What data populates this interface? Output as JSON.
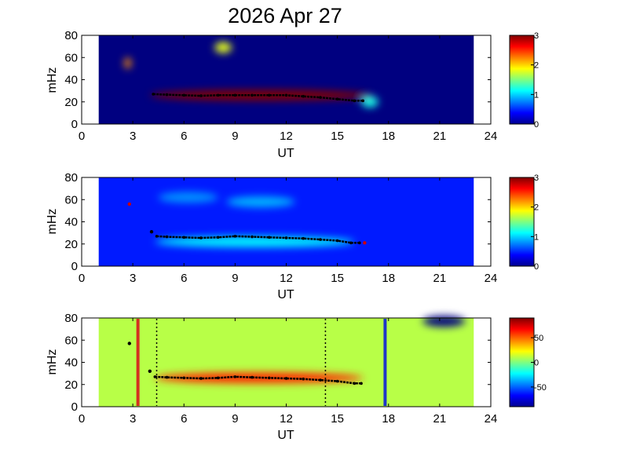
{
  "title": "2026 Apr 27",
  "chart_data": [
    {
      "type": "heatmap",
      "xlabel": "UT",
      "ylabel": "mHz",
      "xlim": [
        0,
        24
      ],
      "ylim": [
        0,
        80
      ],
      "xticks": [
        "0",
        "3",
        "6",
        "9",
        "12",
        "15",
        "18",
        "21",
        "24"
      ],
      "yticks": [
        "0",
        "20",
        "40",
        "60",
        "80"
      ],
      "data_x_range": [
        1,
        23
      ],
      "colorbar": {
        "min": 0,
        "max": 3,
        "ticks": [
          "0",
          "1",
          "2",
          "3"
        ]
      },
      "background_value": 0,
      "ridge": [
        [
          4.2,
          27
        ],
        [
          5,
          26.5
        ],
        [
          6,
          26
        ],
        [
          7,
          25.5
        ],
        [
          8,
          26
        ],
        [
          9,
          26
        ],
        [
          10,
          26
        ],
        [
          11,
          26
        ],
        [
          12,
          26
        ],
        [
          13,
          25
        ],
        [
          14,
          24
        ],
        [
          15,
          22.5
        ],
        [
          16,
          21
        ],
        [
          16.5,
          21
        ]
      ],
      "features": [
        {
          "x": [
            4.0,
            17.0
          ],
          "y": 26,
          "value": 3.0
        },
        {
          "x": [
            7.8,
            8.8
          ],
          "y": 69,
          "value": 1.8
        },
        {
          "x": [
            2.5,
            2.9
          ],
          "y": 55,
          "value": 2.2
        },
        {
          "x": [
            16.4,
            17.4
          ],
          "y": 20,
          "value": 1.2
        }
      ]
    },
    {
      "type": "heatmap",
      "xlabel": "UT",
      "ylabel": "mHz",
      "xlim": [
        0,
        24
      ],
      "ylim": [
        0,
        80
      ],
      "xticks": [
        "0",
        "3",
        "6",
        "9",
        "12",
        "15",
        "18",
        "21",
        "24"
      ],
      "yticks": [
        "0",
        "20",
        "40",
        "60",
        "80"
      ],
      "data_x_range": [
        1,
        23
      ],
      "colorbar": {
        "min": 0,
        "max": 3,
        "ticks": [
          "0",
          "1",
          "2",
          "3"
        ]
      },
      "background_value": 0.45,
      "ridge": [
        [
          4.4,
          27
        ],
        [
          5,
          26.5
        ],
        [
          6,
          26
        ],
        [
          7,
          25.5
        ],
        [
          8,
          26
        ],
        [
          9,
          27
        ],
        [
          10,
          26.5
        ],
        [
          11,
          26
        ],
        [
          12,
          25.5
        ],
        [
          13,
          25
        ],
        [
          14,
          24
        ],
        [
          15,
          23
        ],
        [
          15.8,
          21
        ],
        [
          16.3,
          21
        ]
      ],
      "markers": [
        [
          2.8,
          56
        ],
        [
          4.1,
          31
        ],
        [
          16.6,
          21
        ]
      ],
      "features": [
        {
          "x": [
            4.3,
            16.0
          ],
          "y": 22,
          "value": 1.1
        },
        {
          "x": [
            8.5,
            12.5
          ],
          "y": 58,
          "value": 0.9
        },
        {
          "x": [
            4.5,
            8.0
          ],
          "y": 62,
          "value": 0.8
        }
      ]
    },
    {
      "type": "heatmap",
      "xlabel": "UT",
      "ylabel": "mHz",
      "xlim": [
        0,
        24
      ],
      "ylim": [
        0,
        80
      ],
      "xticks": [
        "0",
        "3",
        "6",
        "9",
        "12",
        "15",
        "18",
        "21",
        "24"
      ],
      "yticks": [
        "0",
        "20",
        "40",
        "60",
        "80"
      ],
      "data_x_range": [
        1,
        23
      ],
      "colorbar": {
        "min": -90,
        "max": 90,
        "ticks": [
          "50",
          "0",
          "-50"
        ],
        "tick_values": [
          50,
          0,
          -50
        ]
      },
      "background_value": 10,
      "ridge": [
        [
          4.3,
          27
        ],
        [
          5,
          26.5
        ],
        [
          6,
          26
        ],
        [
          7,
          25.5
        ],
        [
          8,
          26
        ],
        [
          9,
          27
        ],
        [
          10,
          26.5
        ],
        [
          11,
          26
        ],
        [
          12,
          25.5
        ],
        [
          13,
          25
        ],
        [
          14,
          24
        ],
        [
          15,
          23
        ],
        [
          16,
          21
        ],
        [
          16.4,
          21
        ]
      ],
      "markers": [
        [
          2.8,
          57
        ],
        [
          4.0,
          32
        ]
      ],
      "vertical_lines": [
        {
          "x": 3.3,
          "color": "#d43020",
          "style": "solid"
        },
        {
          "x": 4.4,
          "color": "#000000",
          "style": "dotted"
        },
        {
          "x": 14.3,
          "color": "#000000",
          "style": "dotted"
        },
        {
          "x": 17.8,
          "color": "#1f35c8",
          "style": "solid"
        }
      ],
      "features": [
        {
          "x": [
            4.3,
            16.5
          ],
          "y": 26,
          "value": 60
        },
        {
          "x": [
            20.0,
            22.5
          ],
          "y": 77,
          "value": -90
        }
      ]
    }
  ]
}
